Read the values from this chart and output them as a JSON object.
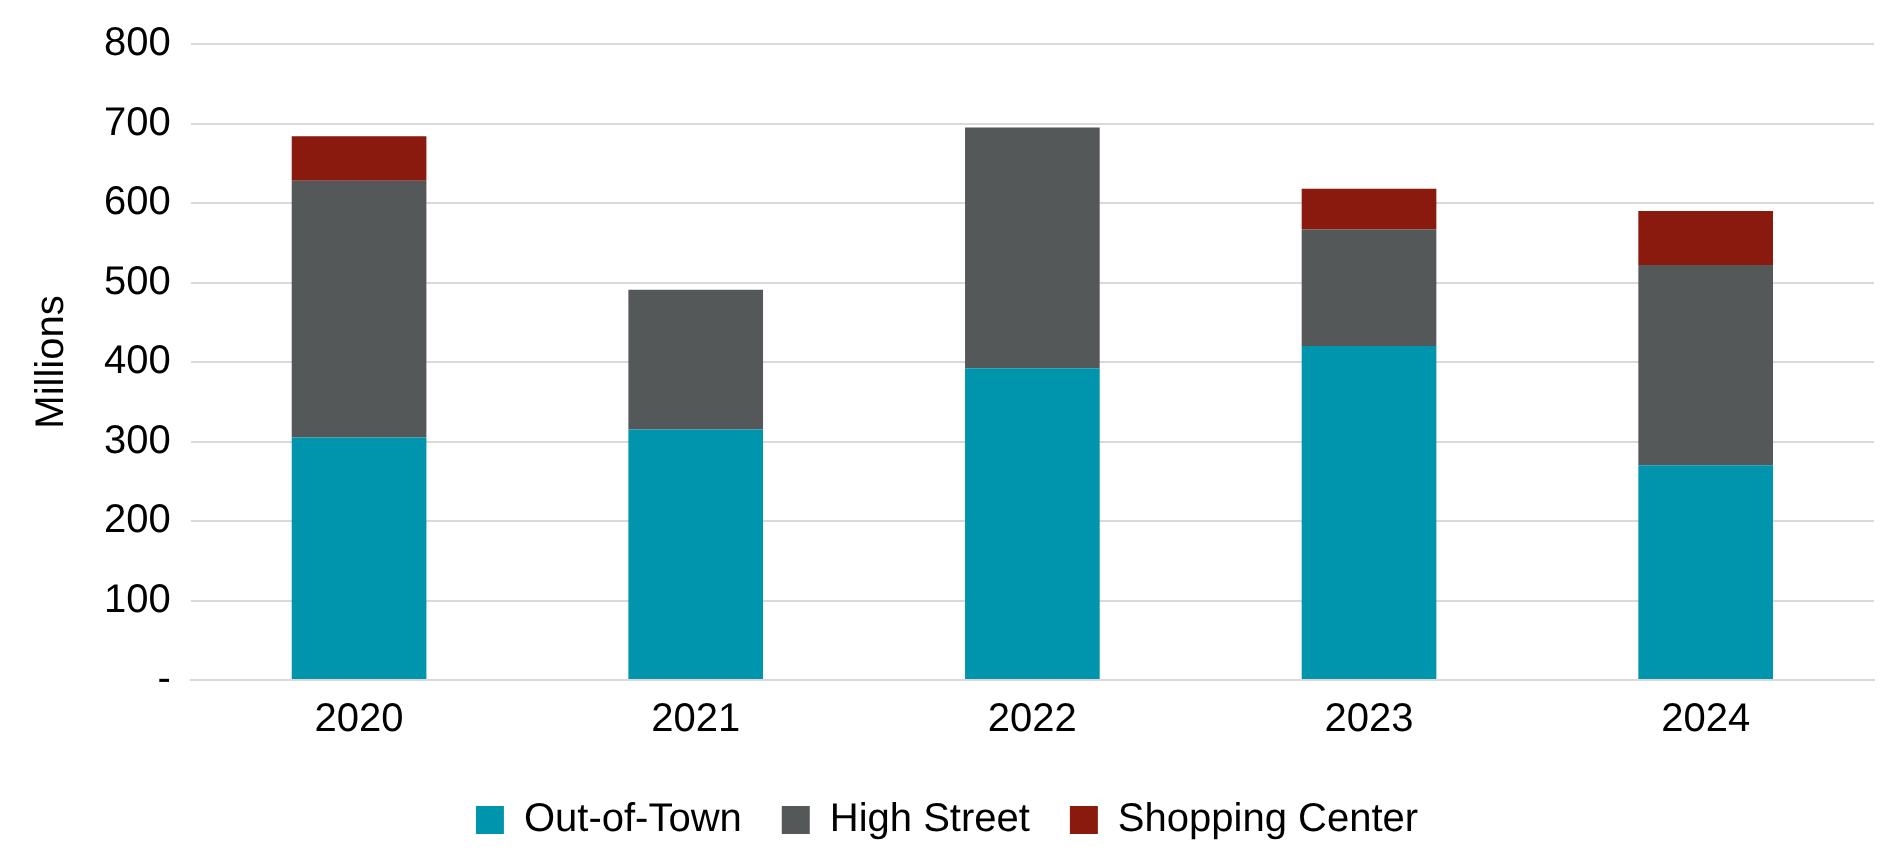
{
  "chart_data": {
    "type": "bar",
    "stacked": true,
    "ylabel": "Millions",
    "categories": [
      "2020",
      "2021",
      "2022",
      "2023",
      "2024"
    ],
    "series": [
      {
        "name": "Out-of-Town",
        "color": "#0095ad",
        "values": [
          305,
          315,
          392,
          420,
          270
        ]
      },
      {
        "name": "High Street",
        "color": "#555859",
        "values": [
          323,
          176,
          303,
          147,
          252
        ]
      },
      {
        "name": "Shopping Center",
        "color": "#8b1a0e",
        "values": [
          56,
          0,
          0,
          51,
          68
        ]
      }
    ],
    "ylim": [
      0,
      800
    ],
    "yticks": [
      {
        "value": 0,
        "label": "-"
      },
      100,
      200,
      300,
      400,
      500,
      600,
      700,
      800
    ],
    "grid": "y",
    "legend": "bottom"
  }
}
